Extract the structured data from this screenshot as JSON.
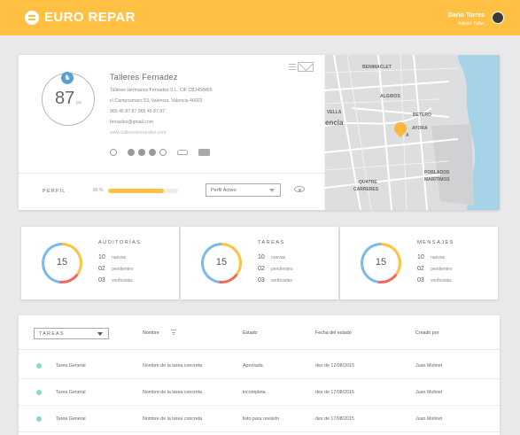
{
  "header": {
    "brand": "EURO REPAR",
    "user_name": "Dario Torres",
    "user_role": "Admin Taller"
  },
  "profile": {
    "score": "87",
    "score_unit": "pts",
    "company_name": "Talleres  Fernadez",
    "legal_line": "Talleres  Hermanos Fernadez S.L.    CIF CBJ458465",
    "address": "c/ Camposmaro 53, Valencia. Valencia 46022",
    "phones": "965 45 87 87     965 45 87 87",
    "email": "fernadez@gmail.com",
    "website": "www.talleresfernandez.com",
    "perfil_label": "PERFIL",
    "completion_label": "80 %",
    "completion": 0.8,
    "status_select": "Perfil Activo"
  },
  "map": {
    "labels": {
      "benimaclet": "BENIMACLET",
      "algiros": "ALGIROS",
      "vella": "VELLA",
      "city": "encia",
      "betero": "BETERO",
      "ayora": "AYORA",
      "poblados": "POBLADOS",
      "maritimos": "MARITIMOS",
      "quatre": "QUATRE",
      "carreres": "CARRERES",
      "pin_tag": "A"
    }
  },
  "stats": [
    {
      "title": "AUDITORÍAS",
      "total": "15",
      "rows": [
        {
          "n": "10",
          "t": "nuevas"
        },
        {
          "n": "02",
          "t": "pendientes"
        },
        {
          "n": "03",
          "t": "verificadas"
        }
      ]
    },
    {
      "title": "TAREAS",
      "total": "15",
      "rows": [
        {
          "n": "10",
          "t": "nuevas"
        },
        {
          "n": "02",
          "t": "pendientes"
        },
        {
          "n": "03",
          "t": "verificadas"
        }
      ]
    },
    {
      "title": "MENSAJES",
      "total": "15",
      "rows": [
        {
          "n": "10",
          "t": "nuevas"
        },
        {
          "n": "02",
          "t": "pendientes"
        },
        {
          "n": "03",
          "t": "verificadas"
        }
      ]
    }
  ],
  "table": {
    "filter_select": "TAREAS",
    "columns": [
      "Nombre",
      "Estado",
      "Fecha del estado",
      "Creado por"
    ],
    "rows": [
      {
        "tipo": "Tarea General",
        "nombre": "Nombre de la tarea concreta",
        "estado": "Aprovada",
        "fecha": "des de 17/08/2015",
        "creado": "Juan Molinet"
      },
      {
        "tipo": "Tarea General",
        "nombre": "Nombre de la tarea concreta",
        "estado": "incompleta",
        "fecha": "des de 17/08/2015",
        "creado": "Juan Molinet"
      },
      {
        "tipo": "Tarea General",
        "nombre": "Nombre de la tarea concreta",
        "estado": "listo para revisión",
        "fecha": "des de 17/08/2015",
        "creado": "Juan Molinet"
      }
    ]
  },
  "colors": {
    "accent": "#ffc043",
    "ring_red": "#ef6a5a",
    "ring_blue": "#7ab9e8",
    "row_dot": "#86d7cf",
    "badge_blue": "#5aa0d8"
  }
}
